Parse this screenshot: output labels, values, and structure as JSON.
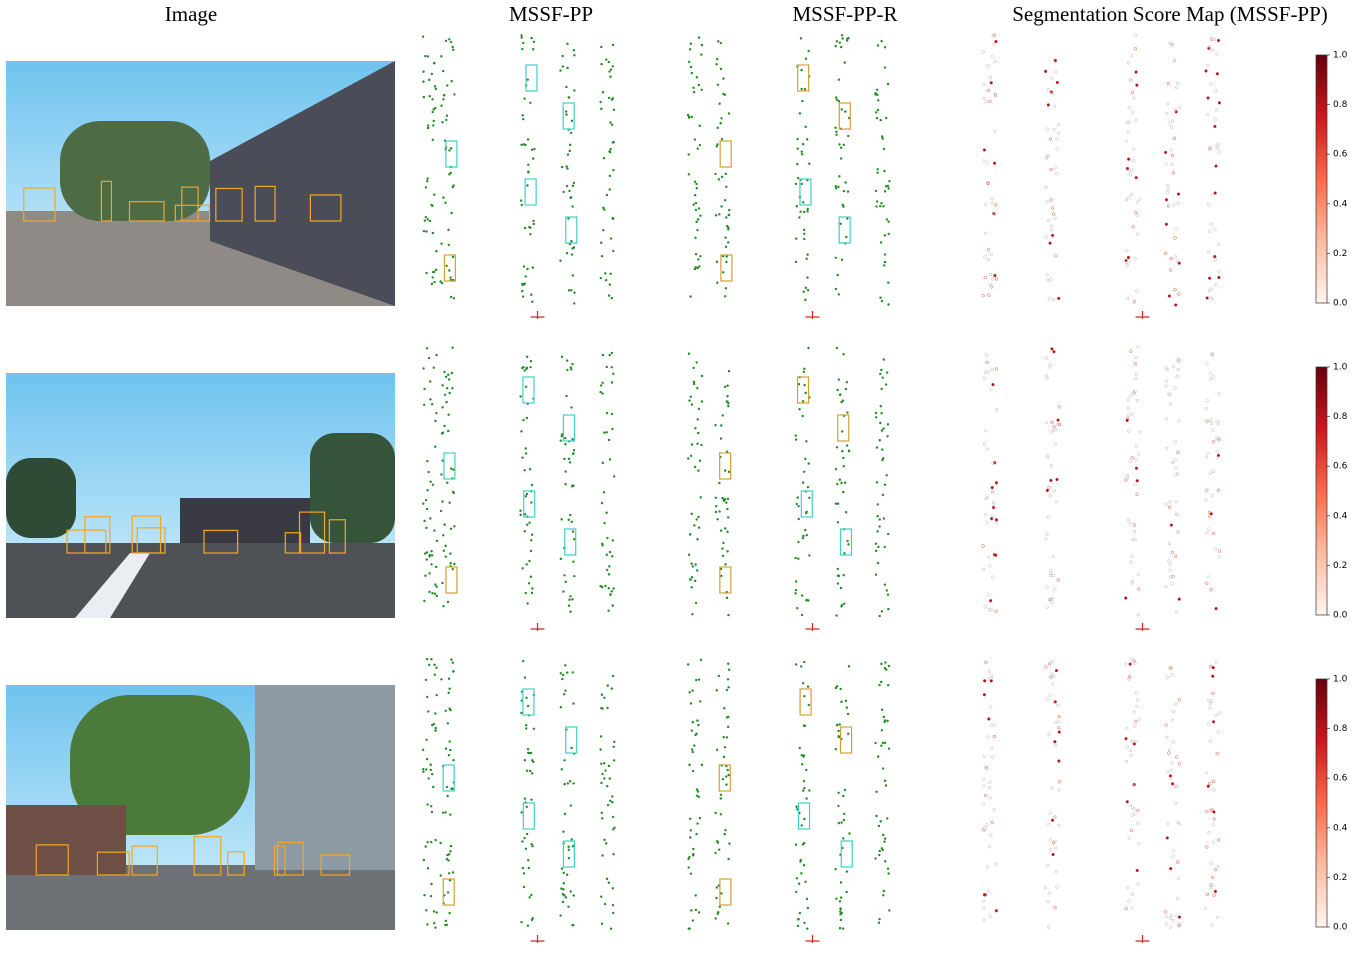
{
  "columns": [
    "Image",
    "MSSF-PP",
    "MSSF-PP-R",
    "Segmentation Score Map (MSSF-PP)"
  ],
  "colorbar": {
    "lim": [
      0,
      1
    ],
    "ticks": [
      {
        "value": 0,
        "label": "0.0"
      },
      {
        "value": 0.2,
        "label": "0.2"
      },
      {
        "value": 0.4,
        "label": "0.4"
      },
      {
        "value": 0.6,
        "label": "0.6"
      },
      {
        "value": 0.8,
        "label": "0.8"
      },
      {
        "value": 1,
        "label": "1.0"
      }
    ]
  }
}
